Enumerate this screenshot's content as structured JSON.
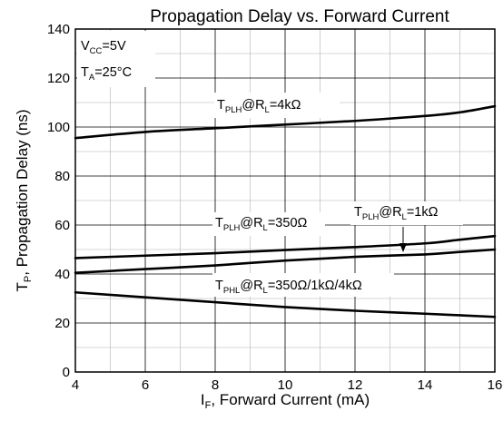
{
  "chart_data": {
    "type": "line",
    "title": "Propagation Delay vs. Forward Current",
    "xlabel": {
      "main": "I",
      "sub": "F",
      "rest": ", Forward Current (mA)"
    },
    "ylabel": {
      "main": "T",
      "sub": "P",
      "rest": ", Propagation Delay (ns)"
    },
    "xlim": [
      4,
      16
    ],
    "ylim": [
      0,
      140
    ],
    "xticks": [
      4,
      6,
      8,
      10,
      12,
      14,
      16
    ],
    "yticks": [
      0,
      20,
      40,
      60,
      80,
      100,
      120,
      140
    ],
    "grid": true,
    "conditions": [
      {
        "main": "V",
        "sub": "CC",
        "rest": "=5V"
      },
      {
        "main": "T",
        "sub": "A",
        "rest": "=25°C"
      }
    ],
    "series": [
      {
        "name": "TPLH@RL=4kΩ",
        "x": [
          4,
          6,
          8,
          10,
          12,
          14,
          15,
          16
        ],
        "y": [
          95.5,
          98,
          99.5,
          101,
          102.5,
          104.5,
          106,
          108.5
        ]
      },
      {
        "name": "TPLH@RL=350Ω",
        "x": [
          4,
          6,
          8,
          10,
          12,
          14,
          15,
          16
        ],
        "y": [
          46.5,
          47.5,
          48.5,
          49.8,
          51,
          52.5,
          54,
          55.5
        ]
      },
      {
        "name": "TPLH@RL=1kΩ",
        "x": [
          4,
          6,
          8,
          10,
          12,
          14,
          15,
          16
        ],
        "y": [
          40.5,
          42,
          43.5,
          45.5,
          47,
          48,
          49,
          50
        ]
      },
      {
        "name": "TPHL@RL=350Ω/1kΩ/4kΩ",
        "x": [
          4,
          6,
          8,
          10,
          12,
          14,
          16
        ],
        "y": [
          32.5,
          30.5,
          28.5,
          26.5,
          25,
          23.8,
          22.5
        ]
      }
    ],
    "annotations": [
      {
        "main": "T",
        "sub1": "PLH",
        "mid": "@R",
        "sub2": "L",
        "rest": "=4kΩ"
      },
      {
        "main": "T",
        "sub1": "PLH",
        "mid": "@R",
        "sub2": "L",
        "rest": "=350Ω"
      },
      {
        "main": "T",
        "sub1": "PLH",
        "mid": "@R",
        "sub2": "L",
        "rest": "=1kΩ"
      },
      {
        "main": "T",
        "sub1": "PHL",
        "mid": "@R",
        "sub2": "L",
        "rest": "=350Ω/1kΩ/4kΩ"
      }
    ]
  }
}
